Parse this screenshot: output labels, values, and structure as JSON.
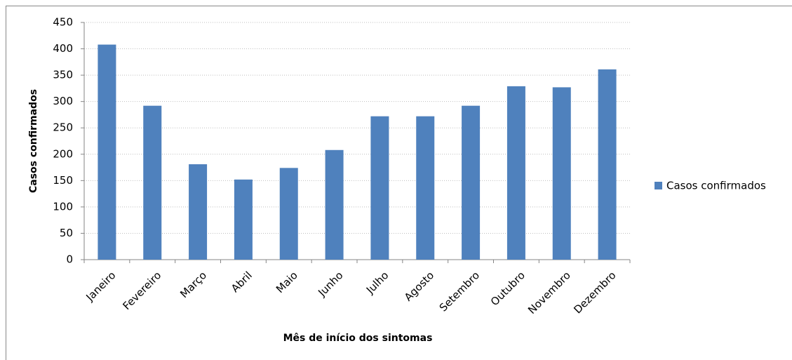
{
  "chart_data": {
    "type": "bar",
    "x_label": "Mês de início dos sintomas",
    "y_label": "Casos confirmados",
    "categories": [
      "Janeiro",
      "Fevereiro",
      "Março",
      "Abril",
      "Maio",
      "Junho",
      "Julho",
      "Agosto",
      "Setembro",
      "Outubro",
      "Novembro",
      "Dezembro"
    ],
    "series": [
      {
        "name": "Casos confirmados",
        "color": "#4f81bd",
        "values": [
          408,
          292,
          181,
          152,
          174,
          208,
          272,
          272,
          292,
          329,
          327,
          361
        ]
      }
    ],
    "ylim": [
      0,
      450
    ],
    "yticks": [
      0,
      50,
      100,
      150,
      200,
      250,
      300,
      350,
      400,
      450
    ],
    "grid": true,
    "legend": "right"
  }
}
